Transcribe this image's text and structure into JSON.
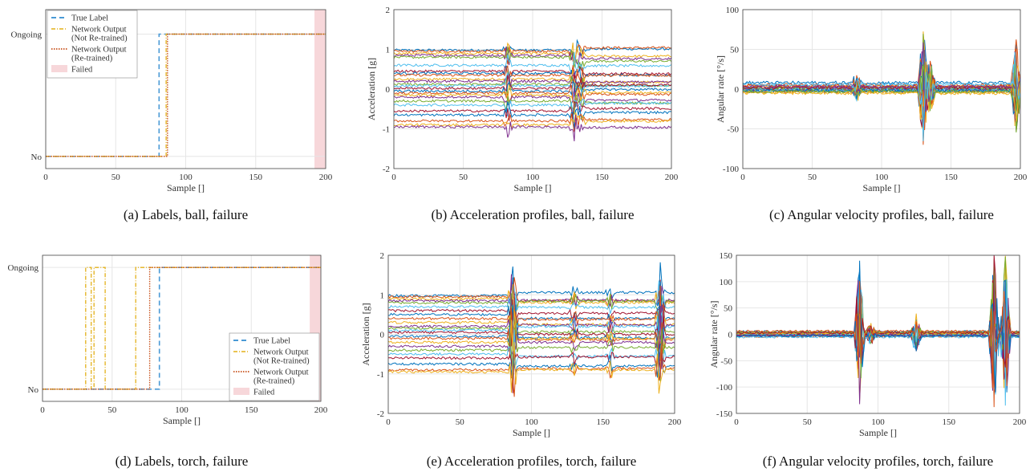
{
  "colors": {
    "true_label": "#4a9ad6",
    "not_retrained": "#e3b019",
    "retrained": "#c8521c",
    "failed": "#f7d7da",
    "grid": "#e6e6e6",
    "series": [
      "#0072bd",
      "#d95319",
      "#edb120",
      "#7e2f8e",
      "#77ac30",
      "#4dbeee",
      "#a2142f"
    ]
  },
  "chart_data": [
    {
      "id": "a",
      "type": "line",
      "caption": "(a) Labels, ball, failure",
      "xlabel": "Sample []",
      "ylabel": "",
      "xlim": [
        0,
        200
      ],
      "xticks": [
        0,
        50,
        100,
        150,
        200
      ],
      "yticks": [
        {
          "value": 0,
          "label": "No"
        },
        {
          "value": 1,
          "label": "Ongoing"
        }
      ],
      "ylim": [
        -0.1,
        1.2
      ],
      "grid": true,
      "legend_position": "top-left",
      "failed_region": [
        192,
        200
      ],
      "series": [
        {
          "name": "True Label",
          "style": "dashed",
          "points": [
            [
              0,
              0
            ],
            [
              81,
              0
            ],
            [
              81,
              1
            ],
            [
              200,
              1
            ]
          ]
        },
        {
          "name": "Network Output (Not Re-trained)",
          "style": "dashdot",
          "points": [
            [
              0,
              0
            ],
            [
              86,
              0
            ],
            [
              86,
              1
            ],
            [
              200,
              1
            ]
          ]
        },
        {
          "name": "Network Output (Re-trained)",
          "style": "dotted",
          "points": [
            [
              0,
              0
            ],
            [
              87,
              0
            ],
            [
              87,
              1
            ],
            [
              200,
              1
            ]
          ]
        }
      ],
      "legend": [
        "True Label",
        [
          "Network Output",
          "(Not Re-trained)"
        ],
        [
          "Network Output",
          "(Re-trained)"
        ],
        "Failed"
      ]
    },
    {
      "id": "b",
      "type": "line",
      "caption": "(b) Acceleration profiles, ball, failure",
      "xlabel": "Sample []",
      "ylabel": "Acceleration [g]",
      "xlim": [
        0,
        200
      ],
      "ylim": [
        -2,
        2
      ],
      "xticks": [
        0,
        50,
        100,
        150,
        200
      ],
      "yticks": [
        -2,
        -1,
        0,
        1,
        2
      ],
      "grid": true,
      "profile": {
        "levels": [
          0.98,
          0.95,
          0.9,
          0.85,
          0.8,
          0.6,
          0.45,
          0.4,
          0.35,
          0.25,
          0.2,
          0.12,
          0.08,
          0.02,
          -0.05,
          -0.1,
          -0.15,
          -0.2,
          -0.3,
          -0.4,
          -0.55,
          -0.65,
          -0.8,
          -0.9,
          -0.95
        ],
        "events": [
          {
            "x": 82,
            "amp": 0.35
          },
          {
            "x": 130,
            "amp": 0.4
          },
          {
            "x": 135,
            "amp": 0.25
          }
        ],
        "shift_after": 130,
        "noise": 0.03
      }
    },
    {
      "id": "c",
      "type": "line",
      "caption": "(c) Angular velocity profiles, ball, failure",
      "xlabel": "Sample []",
      "ylabel": "Angular rate [°/s]",
      "xlim": [
        0,
        200
      ],
      "ylim": [
        -100,
        100
      ],
      "xticks": [
        0,
        50,
        100,
        150,
        200
      ],
      "yticks": [
        -100,
        -50,
        0,
        50,
        100
      ],
      "grid": true,
      "profile": {
        "levels": [
          8,
          5,
          3,
          2,
          1,
          0,
          -1,
          -2,
          -3,
          -4,
          0,
          1,
          -1,
          2,
          -2,
          4,
          -5,
          3,
          -3,
          6
        ],
        "events": [
          {
            "x": 82,
            "amp": 15
          },
          {
            "x": 130,
            "amp": 80
          },
          {
            "x": 135,
            "amp": 35
          },
          {
            "x": 197,
            "amp": 60
          }
        ],
        "shift_after": 0,
        "noise": 2
      }
    },
    {
      "id": "d",
      "type": "line",
      "caption": "(d) Labels, torch, failure",
      "xlabel": "Sample []",
      "ylabel": "",
      "xlim": [
        0,
        200
      ],
      "xticks": [
        0,
        50,
        100,
        150,
        200
      ],
      "yticks": [
        {
          "value": 0,
          "label": "No"
        },
        {
          "value": 1,
          "label": "Ongoing"
        }
      ],
      "ylim": [
        -0.1,
        1.1
      ],
      "grid": true,
      "legend_position": "bottom-right",
      "failed_region": [
        192,
        200
      ],
      "series": [
        {
          "name": "True Label",
          "style": "dashed",
          "points": [
            [
              0,
              0
            ],
            [
              84,
              0
            ],
            [
              84,
              1
            ],
            [
              200,
              1
            ]
          ]
        },
        {
          "name": "Network Output (Not Re-trained)",
          "style": "dashdot",
          "points": [
            [
              0,
              0
            ],
            [
              31,
              0
            ],
            [
              31,
              1
            ],
            [
              35,
              1
            ],
            [
              35,
              0
            ],
            [
              37,
              0
            ],
            [
              37,
              1
            ],
            [
              45,
              1
            ],
            [
              45,
              0
            ],
            [
              67,
              0
            ],
            [
              67,
              1
            ],
            [
              200,
              1
            ]
          ]
        },
        {
          "name": "Network Output (Re-trained)",
          "style": "dotted",
          "points": [
            [
              0,
              0
            ],
            [
              77,
              0
            ],
            [
              77,
              1
            ],
            [
              200,
              1
            ]
          ]
        }
      ],
      "legend": [
        "True Label",
        [
          "Network Output",
          "(Not Re-trained)"
        ],
        [
          "Network Output",
          "(Re-trained)"
        ],
        "Failed"
      ]
    },
    {
      "id": "e",
      "type": "line",
      "caption": "(e) Acceleration profiles, torch, failure",
      "xlabel": "Sample []",
      "ylabel": "Acceleration [g]",
      "xlim": [
        0,
        200
      ],
      "ylim": [
        -2,
        2
      ],
      "xticks": [
        0,
        50,
        100,
        150,
        200
      ],
      "yticks": [
        -2,
        -1,
        0,
        1,
        2
      ],
      "grid": true,
      "profile": {
        "levels": [
          0.98,
          0.95,
          0.9,
          0.85,
          0.8,
          0.7,
          0.6,
          0.5,
          0.4,
          0.3,
          0.2,
          0.15,
          0.1,
          0.05,
          -0.05,
          -0.1,
          -0.2,
          -0.3,
          -0.4,
          -0.5,
          -0.6,
          -0.75,
          -0.9,
          -0.95
        ],
        "events": [
          {
            "x": 87,
            "amp": 1.0
          },
          {
            "x": 130,
            "amp": 0.25
          },
          {
            "x": 155,
            "amp": 0.25
          },
          {
            "x": 190,
            "amp": 1.0
          }
        ],
        "shift_after": 87,
        "noise": 0.03
      }
    },
    {
      "id": "f",
      "type": "line",
      "caption": "(f) Angular velocity profiles, torch, failure",
      "xlabel": "Sample []",
      "ylabel": "Angular rate [°/s]",
      "xlim": [
        0,
        200
      ],
      "ylim": [
        -150,
        150
      ],
      "xticks": [
        0,
        50,
        100,
        150,
        200
      ],
      "yticks": [
        -150,
        -100,
        -50,
        0,
        50,
        100,
        150
      ],
      "grid": true,
      "profile": {
        "levels": [
          5,
          3,
          2,
          1,
          0,
          -1,
          -2,
          -3,
          -4,
          2,
          -2,
          4,
          -5,
          3,
          -3,
          6
        ],
        "events": [
          {
            "x": 87,
            "amp": 150
          },
          {
            "x": 95,
            "amp": 20
          },
          {
            "x": 127,
            "amp": 40
          },
          {
            "x": 182,
            "amp": 150
          },
          {
            "x": 190,
            "amp": 150
          }
        ],
        "shift_after": 0,
        "noise": 2
      }
    }
  ]
}
